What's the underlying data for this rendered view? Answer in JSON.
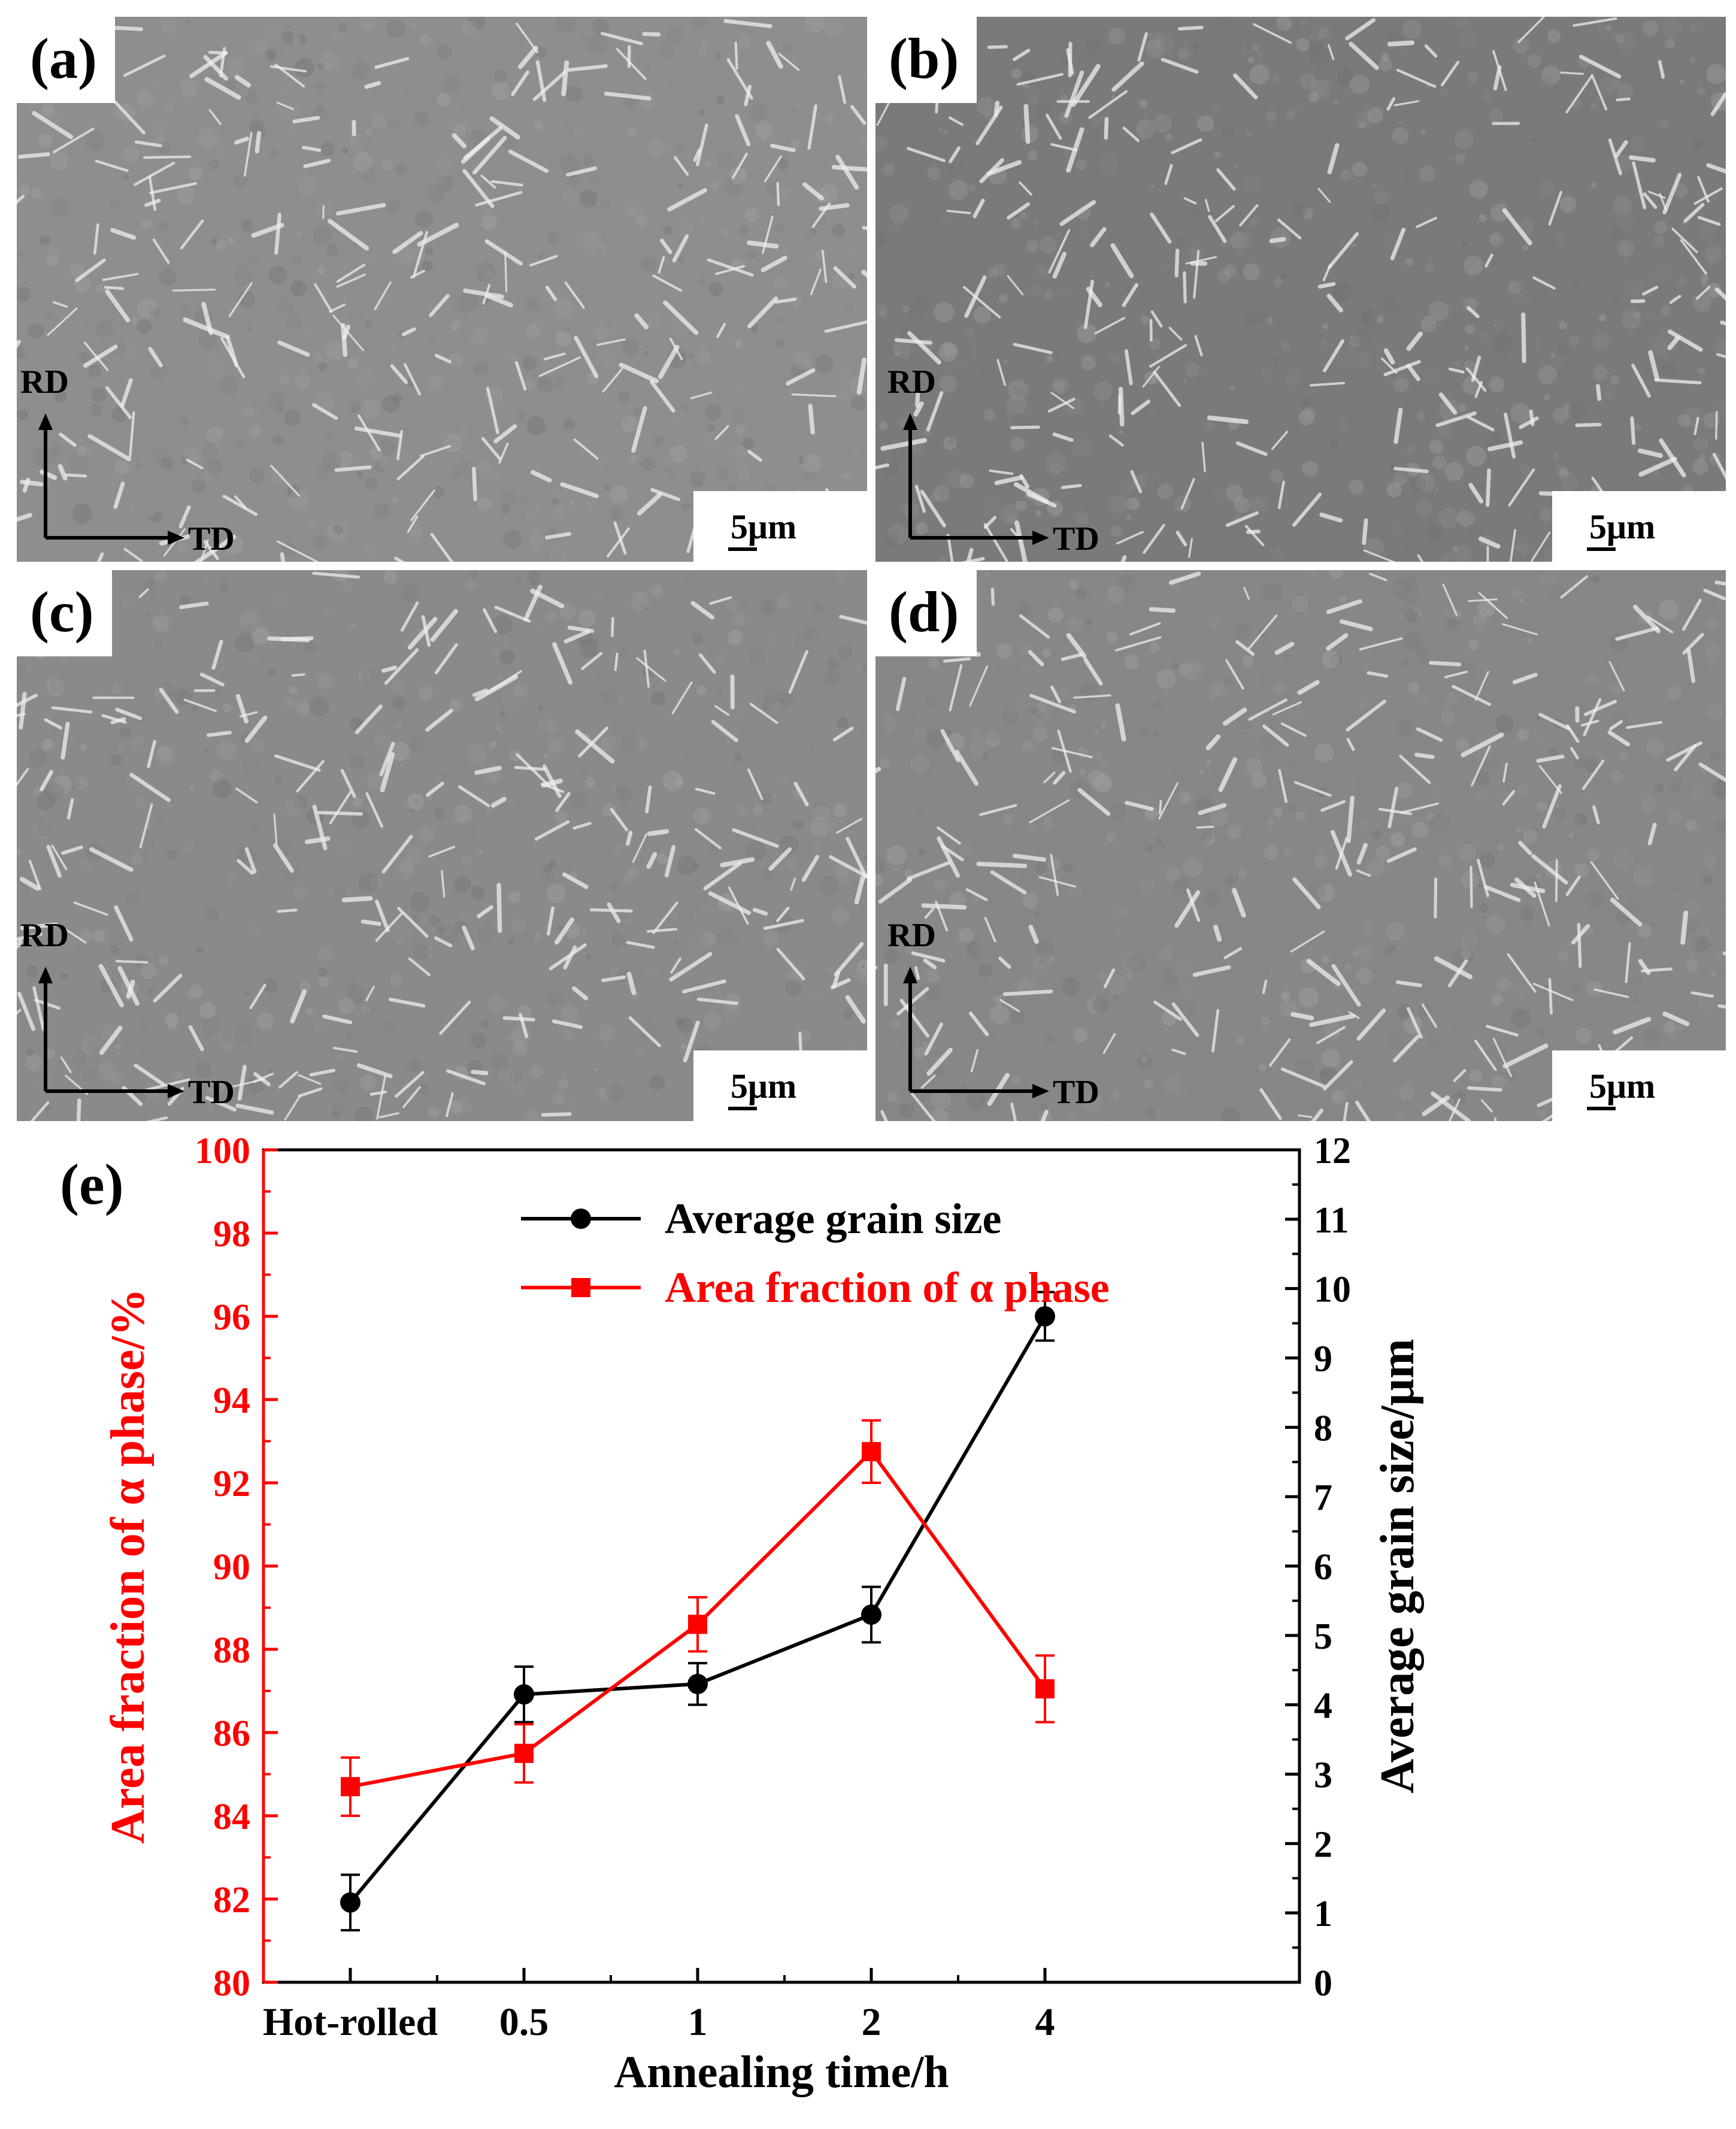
{
  "panels": [
    {
      "label": "(a)",
      "rd": "RD",
      "td": "TD",
      "scale": "5μm",
      "shade": "#8e8e8e"
    },
    {
      "label": "(b)",
      "rd": "RD",
      "td": "TD",
      "scale": "5μm",
      "shade": "#7a7a7a"
    },
    {
      "label": "(c)",
      "rd": "RD",
      "td": "TD",
      "scale": "5μm",
      "shade": "#8a8a8a"
    },
    {
      "label": "(d)",
      "rd": "RD",
      "td": "TD",
      "scale": "5μm",
      "shade": "#878787"
    }
  ],
  "chart_label": "(e)",
  "chart_data": {
    "type": "line",
    "categories": [
      "Hot-rolled",
      "0.5",
      "1",
      "2",
      "4"
    ],
    "xlabel": "Annealing time/h",
    "ylabel_left": "Area fraction of α phase/%",
    "ylabel_right": "Average grain size/μm",
    "ylim_left": [
      80,
      100
    ],
    "ylim_right": [
      0,
      12
    ],
    "yticks_left": [
      80,
      82,
      84,
      86,
      88,
      90,
      92,
      94,
      96,
      98,
      100
    ],
    "yticks_right": [
      0,
      1,
      2,
      3,
      4,
      5,
      6,
      7,
      8,
      9,
      10,
      11,
      12
    ],
    "legend_position": "top-center",
    "grid": false,
    "series": [
      {
        "name": "Average grain size",
        "axis": "right",
        "color": "#000000",
        "marker": "circle",
        "values": [
          1.15,
          4.15,
          4.3,
          5.3,
          9.6
        ],
        "errors": [
          0.4,
          0.4,
          0.3,
          0.4,
          0.35
        ]
      },
      {
        "name": "Area fraction of α phase",
        "axis": "left",
        "color": "#ff0000",
        "marker": "square",
        "values": [
          84.7,
          85.5,
          88.6,
          92.75,
          87.05
        ],
        "errors": [
          0.7,
          0.7,
          0.65,
          0.75,
          0.8
        ]
      }
    ]
  }
}
